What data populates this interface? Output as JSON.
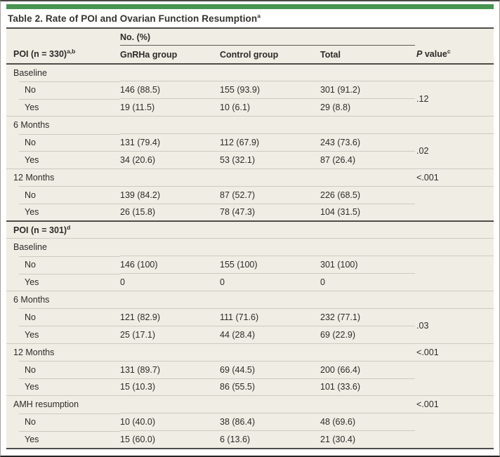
{
  "accent": {
    "green_bar": "#479551",
    "table_bg": "#f0ede4",
    "rule_dark": "#4e4d4a",
    "rule_light": "#cdcac1"
  },
  "title": {
    "text": "Table 2. Rate of POI and Ovarian Function Resumption",
    "sup": "a"
  },
  "header": {
    "group_label": "No. (%)",
    "stub": {
      "text": "POI (n = 330)",
      "sup": "a,b"
    },
    "columns": [
      "GnRHa group",
      "Control group",
      "Total"
    ],
    "p": {
      "italic": "P",
      "text": " value",
      "sup": "c"
    }
  },
  "rows": [
    {
      "type": "section",
      "label": "Baseline",
      "p": ""
    },
    {
      "type": "sub",
      "label": "No",
      "gnrha": "146 (88.5)",
      "control": "155 (93.9)",
      "total": "301 (91.2)",
      "p": ".12"
    },
    {
      "type": "sub",
      "label": "Yes",
      "gnrha": "19 (11.5)",
      "control": "10 (6.1)",
      "total": "29 (8.8)"
    },
    {
      "type": "section",
      "label": "6 Months",
      "p": ""
    },
    {
      "type": "sub",
      "label": "No",
      "gnrha": "131 (79.4)",
      "control": "112 (67.9)",
      "total": "243 (73.6)",
      "p": ".02"
    },
    {
      "type": "sub",
      "label": "Yes",
      "gnrha": "34 (20.6)",
      "control": "53 (32.1)",
      "total": "87 (26.4)"
    },
    {
      "type": "section",
      "label": "12 Months",
      "p": "<.001"
    },
    {
      "type": "sub",
      "label": "No",
      "gnrha": "139 (84.2)",
      "control": "87 (52.7)",
      "total": "226 (68.5)",
      "p": ""
    },
    {
      "type": "sub",
      "label": "Yes",
      "gnrha": "26 (15.8)",
      "control": "78 (47.3)",
      "total": "104 (31.5)"
    },
    {
      "type": "group",
      "label": "POI (n = 301)",
      "sup": "d"
    },
    {
      "type": "section",
      "label": "Baseline",
      "p": ""
    },
    {
      "type": "sub",
      "label": "No",
      "gnrha": "146 (100)",
      "control": "155 (100)",
      "total": "301 (100)",
      "p": ""
    },
    {
      "type": "sub",
      "label": "Yes",
      "gnrha": "0",
      "control": "0",
      "total": "0"
    },
    {
      "type": "section",
      "label": "6 Months",
      "p": ""
    },
    {
      "type": "sub",
      "label": "No",
      "gnrha": "121 (82.9)",
      "control": "111 (71.6)",
      "total": "232 (77.1)",
      "p": ".03"
    },
    {
      "type": "sub",
      "label": "Yes",
      "gnrha": "25 (17.1)",
      "control": "44 (28.4)",
      "total": "69 (22.9)"
    },
    {
      "type": "section",
      "label": "12 Months",
      "p": "<.001"
    },
    {
      "type": "sub",
      "label": "No",
      "gnrha": "131 (89.7)",
      "control": "69 (44.5)",
      "total": "200 (66.4)",
      "p": ""
    },
    {
      "type": "sub",
      "label": "Yes",
      "gnrha": "15 (10.3)",
      "control": "86 (55.5)",
      "total": "101 (33.6)"
    },
    {
      "type": "section",
      "label": "AMH resumption",
      "p": "<.001"
    },
    {
      "type": "sub",
      "label": "No",
      "gnrha": "10 (40.0)",
      "control": "38 (86.4)",
      "total": "48 (69.6)",
      "p": ""
    },
    {
      "type": "sub",
      "label": "Yes",
      "gnrha": "15 (60.0)",
      "control": "6 (13.6)",
      "total": "21 (30.4)"
    }
  ]
}
